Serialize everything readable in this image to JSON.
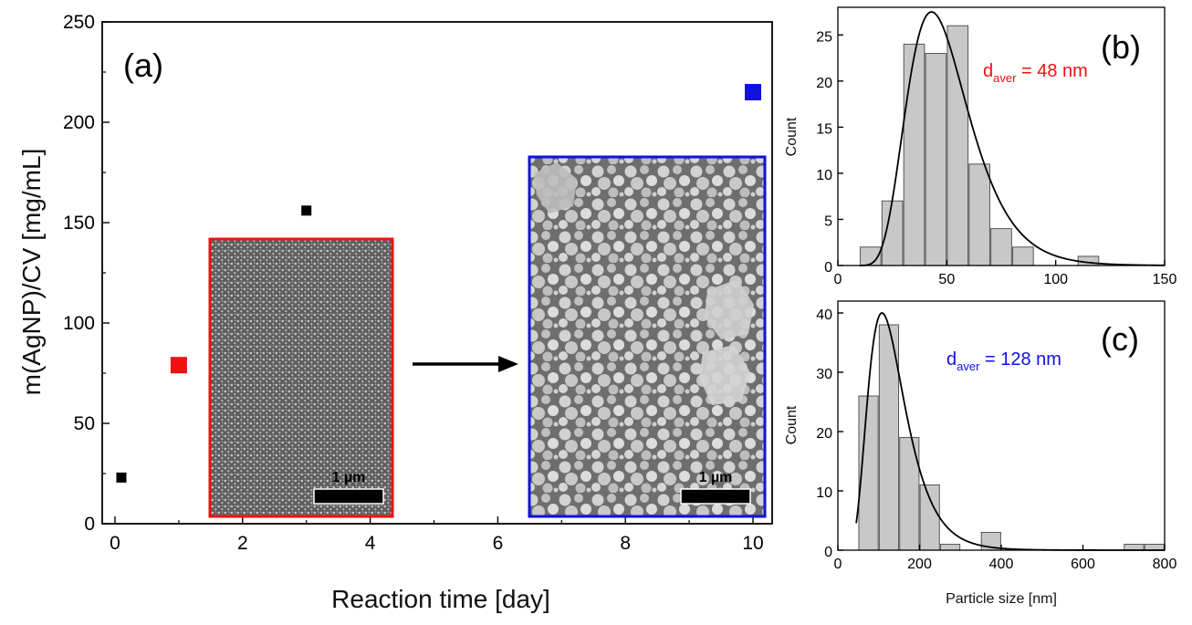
{
  "colors": {
    "red": "#ee1111",
    "blue": "#1111dd",
    "black": "#000000",
    "bar_fill": "#c8c8c8",
    "bar_stroke": "#555555",
    "sem_dark": "#5e5e5e",
    "sem_light": "#c4c4c4"
  },
  "chart_data": [
    {
      "type": "scatter",
      "panel_label": "(a)",
      "xlabel": "Reaction time [day]",
      "ylabel": "m(AgNP)/CV [mg/mL]",
      "xlim": [
        -0.2,
        10.3
      ],
      "ylim": [
        0,
        250
      ],
      "xticks": [
        0,
        2,
        4,
        6,
        8,
        10
      ],
      "yticks": [
        0,
        50,
        100,
        150,
        200,
        250
      ],
      "points": [
        {
          "x": 0.1,
          "y": 23,
          "color": "black",
          "size": "small"
        },
        {
          "x": 1,
          "y": 79,
          "color": "red",
          "size": "large"
        },
        {
          "x": 3,
          "y": 156,
          "color": "black",
          "size": "small"
        },
        {
          "x": 10,
          "y": 215,
          "color": "blue",
          "size": "large"
        }
      ],
      "insets": [
        {
          "frame_color": "red",
          "image": "SEM micrograph (day 1)",
          "scalebar_label": "1 µm"
        },
        {
          "frame_color": "blue",
          "image": "SEM micrograph (day 10)",
          "scalebar_label": "1 µm"
        }
      ],
      "arrow": "red inset to blue inset"
    },
    {
      "type": "bar",
      "panel_label": "(b)",
      "xlabel": "",
      "ylabel": "Count",
      "xlim": [
        0,
        150
      ],
      "ylim": [
        0,
        28
      ],
      "xticks": [
        0,
        50,
        100,
        150
      ],
      "yticks": [
        0,
        5,
        10,
        15,
        20,
        25
      ],
      "bin_width": 10,
      "bins": [
        {
          "x": 15,
          "count": 2
        },
        {
          "x": 25,
          "count": 7
        },
        {
          "x": 35,
          "count": 24
        },
        {
          "x": 45,
          "count": 23
        },
        {
          "x": 55,
          "count": 26
        },
        {
          "x": 65,
          "count": 11
        },
        {
          "x": 75,
          "count": 4
        },
        {
          "x": 85,
          "count": 2
        },
        {
          "x": 115,
          "count": 1
        }
      ],
      "fit": {
        "type": "lognormal",
        "peak_x": 43,
        "peak_y": 27.5
      },
      "annotation": {
        "main": "d",
        "sub": "aver",
        "rest": " = 48 nm",
        "color": "red"
      }
    },
    {
      "type": "bar",
      "panel_label": "(c)",
      "xlabel": "Particle size [nm]",
      "ylabel": "Count",
      "xlim": [
        0,
        800
      ],
      "ylim": [
        0,
        42
      ],
      "xticks": [
        0,
        200,
        400,
        600,
        800
      ],
      "yticks": [
        0,
        10,
        20,
        30,
        40
      ],
      "bin_width": 50,
      "bins": [
        {
          "x": 75,
          "count": 26
        },
        {
          "x": 125,
          "count": 38
        },
        {
          "x": 175,
          "count": 19
        },
        {
          "x": 225,
          "count": 11
        },
        {
          "x": 275,
          "count": 1
        },
        {
          "x": 375,
          "count": 3
        },
        {
          "x": 725,
          "count": 1
        },
        {
          "x": 775,
          "count": 1
        }
      ],
      "fit": {
        "type": "lognormal",
        "peak_x": 108,
        "peak_y": 40
      },
      "annotation": {
        "main": "d",
        "sub": "aver",
        "rest": " = 128 nm",
        "color": "blue"
      }
    }
  ]
}
